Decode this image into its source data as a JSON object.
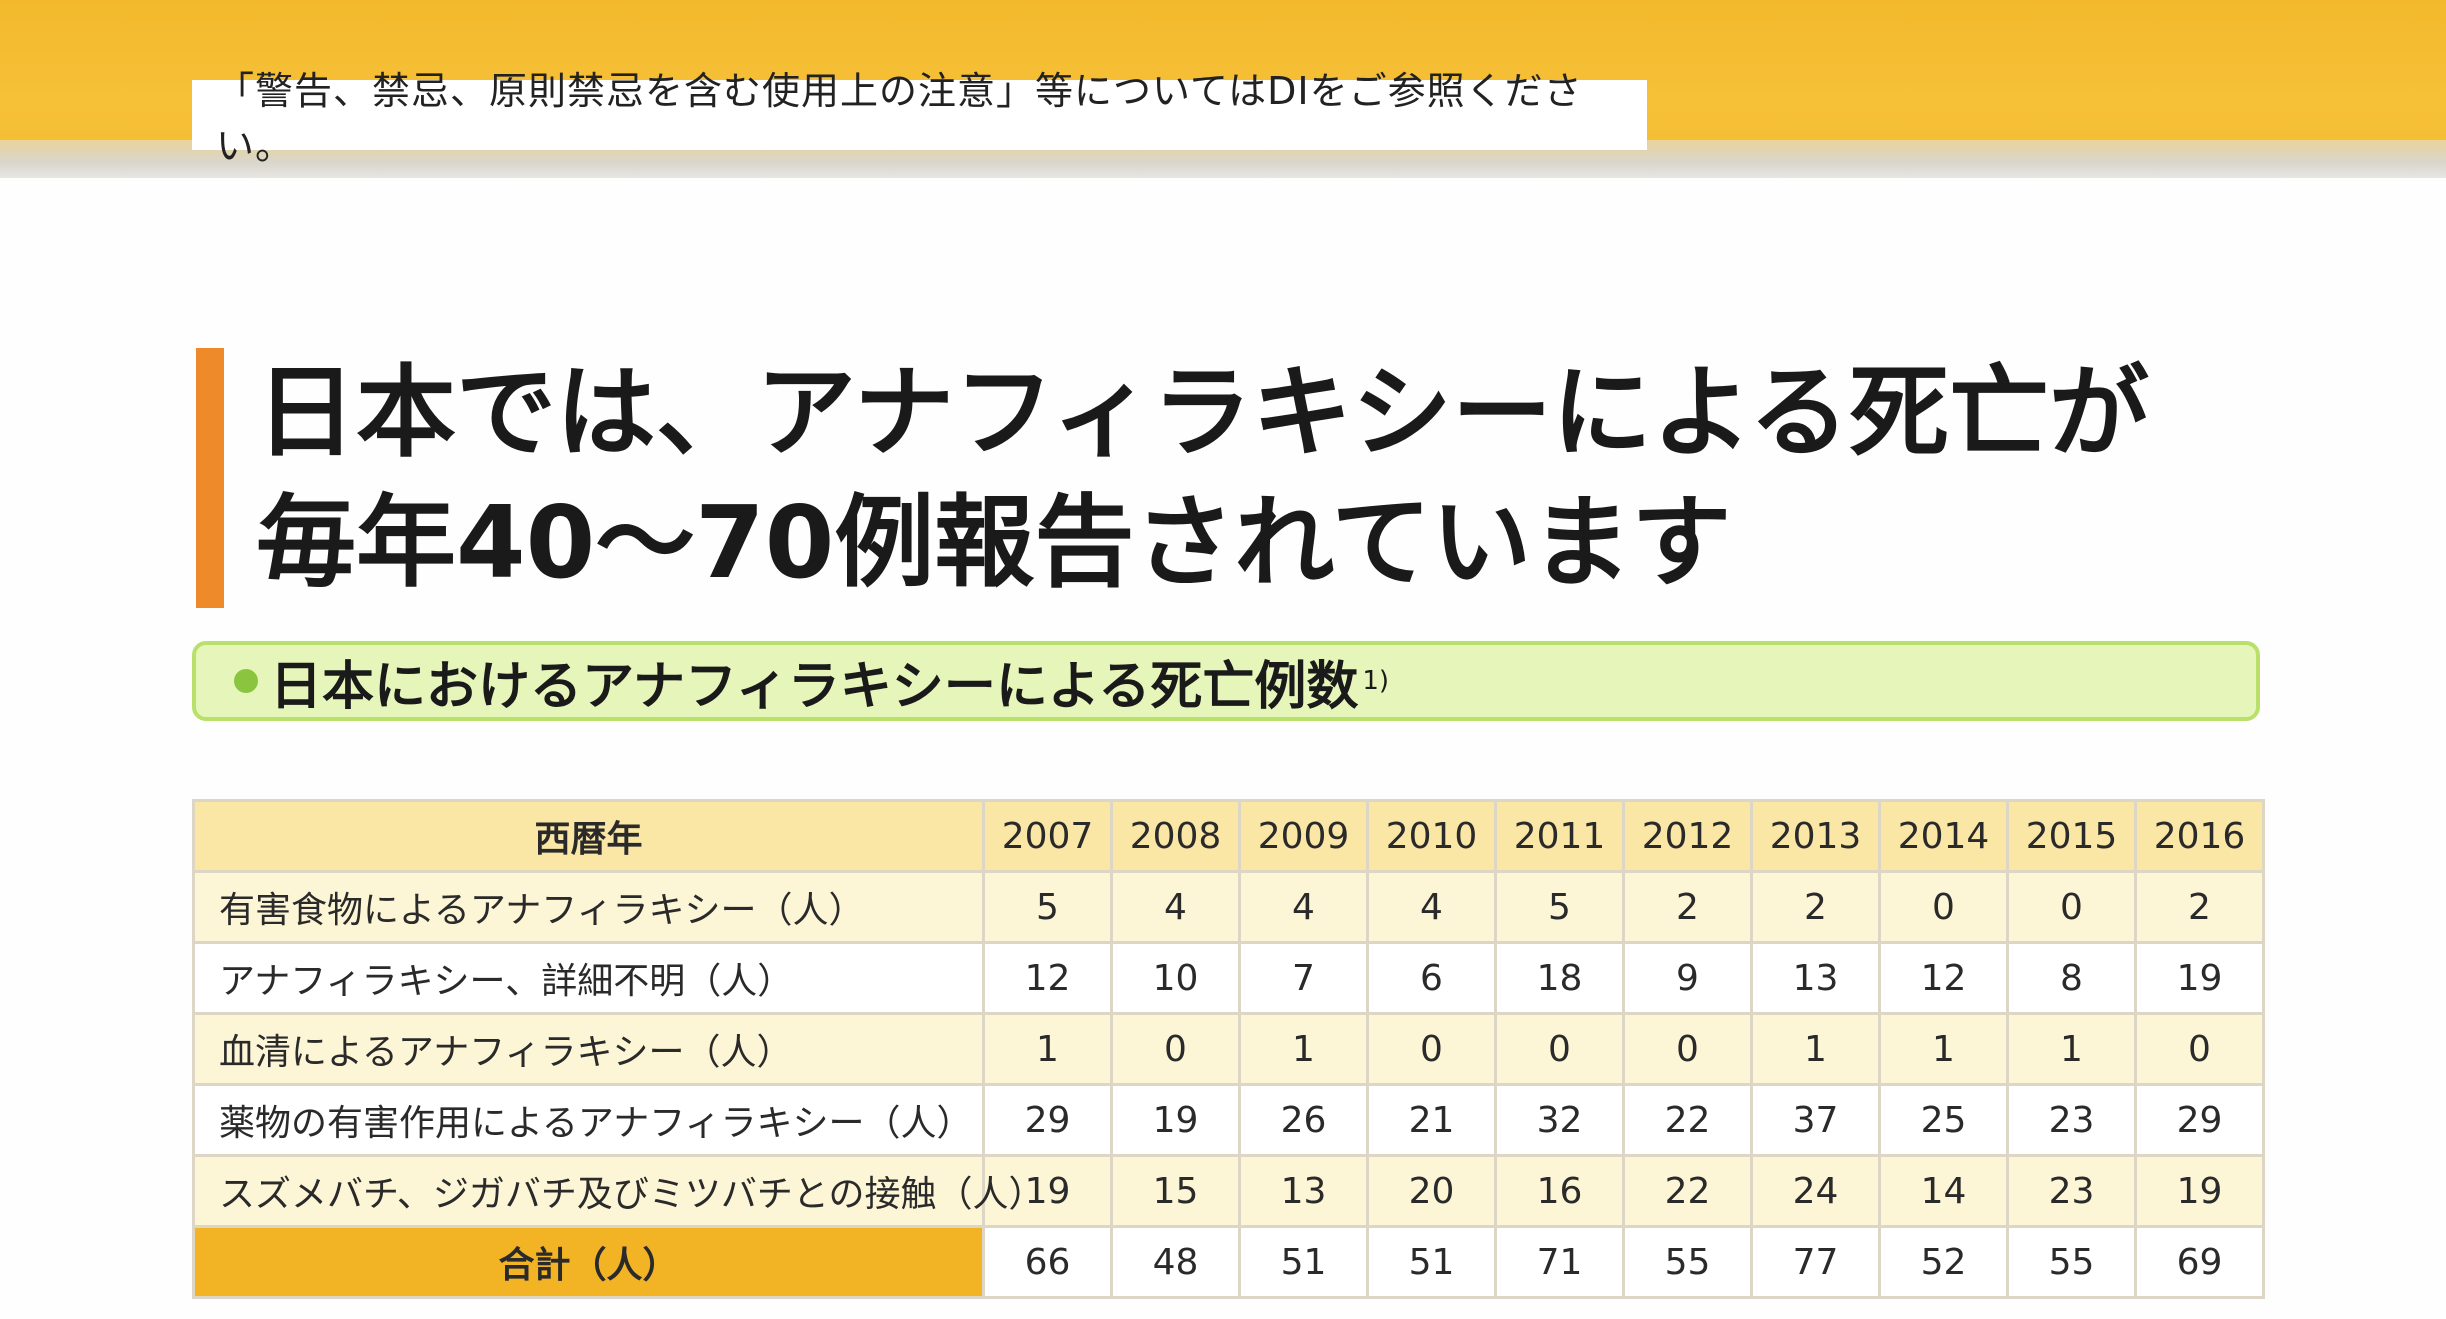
{
  "header": {
    "notice": "「警告、禁忌、原則禁忌を含む使用上の注意」等についてはDIをご参照ください。"
  },
  "heading": {
    "line1": "日本では、アナフィラキシーによる死亡が",
    "line2": "毎年40〜70例報告されています"
  },
  "subheading": {
    "text": "日本におけるアナフィラキシーによる死亡例数",
    "ref": "1)"
  },
  "table": {
    "corner": "西暦年",
    "years": [
      "2007",
      "2008",
      "2009",
      "2010",
      "2011",
      "2012",
      "2013",
      "2014",
      "2015",
      "2016"
    ],
    "rows": [
      {
        "label": "有害食物によるアナフィラキシー（人）",
        "values": [
          "5",
          "4",
          "4",
          "4",
          "5",
          "2",
          "2",
          "0",
          "0",
          "2"
        ]
      },
      {
        "label": "アナフィラキシー、詳細不明（人）",
        "values": [
          "12",
          "10",
          "7",
          "6",
          "18",
          "9",
          "13",
          "12",
          "8",
          "19"
        ]
      },
      {
        "label": "血清によるアナフィラキシー（人）",
        "values": [
          "1",
          "0",
          "1",
          "0",
          "0",
          "0",
          "1",
          "1",
          "1",
          "0"
        ]
      },
      {
        "label": "薬物の有害作用によるアナフィラキシー（人）",
        "values": [
          "29",
          "19",
          "26",
          "21",
          "32",
          "22",
          "37",
          "25",
          "23",
          "29"
        ]
      },
      {
        "label": "スズメバチ、ジガバチ及びミツバチとの接触（人）",
        "values": [
          "19",
          "15",
          "13",
          "20",
          "16",
          "22",
          "24",
          "14",
          "23",
          "19"
        ]
      }
    ],
    "total": {
      "label": "合計（人）",
      "values": [
        "66",
        "48",
        "51",
        "51",
        "71",
        "55",
        "77",
        "52",
        "55",
        "69"
      ]
    }
  },
  "colors": {
    "band": "#f4bd33",
    "heading_bar": "#ef8a2b",
    "subhead_bg": "#e6f5b9",
    "subhead_border": "#b8e06a",
    "dot": "#8bc53f",
    "header_cell": "#fae7a6",
    "total_label": "#f2b325"
  }
}
